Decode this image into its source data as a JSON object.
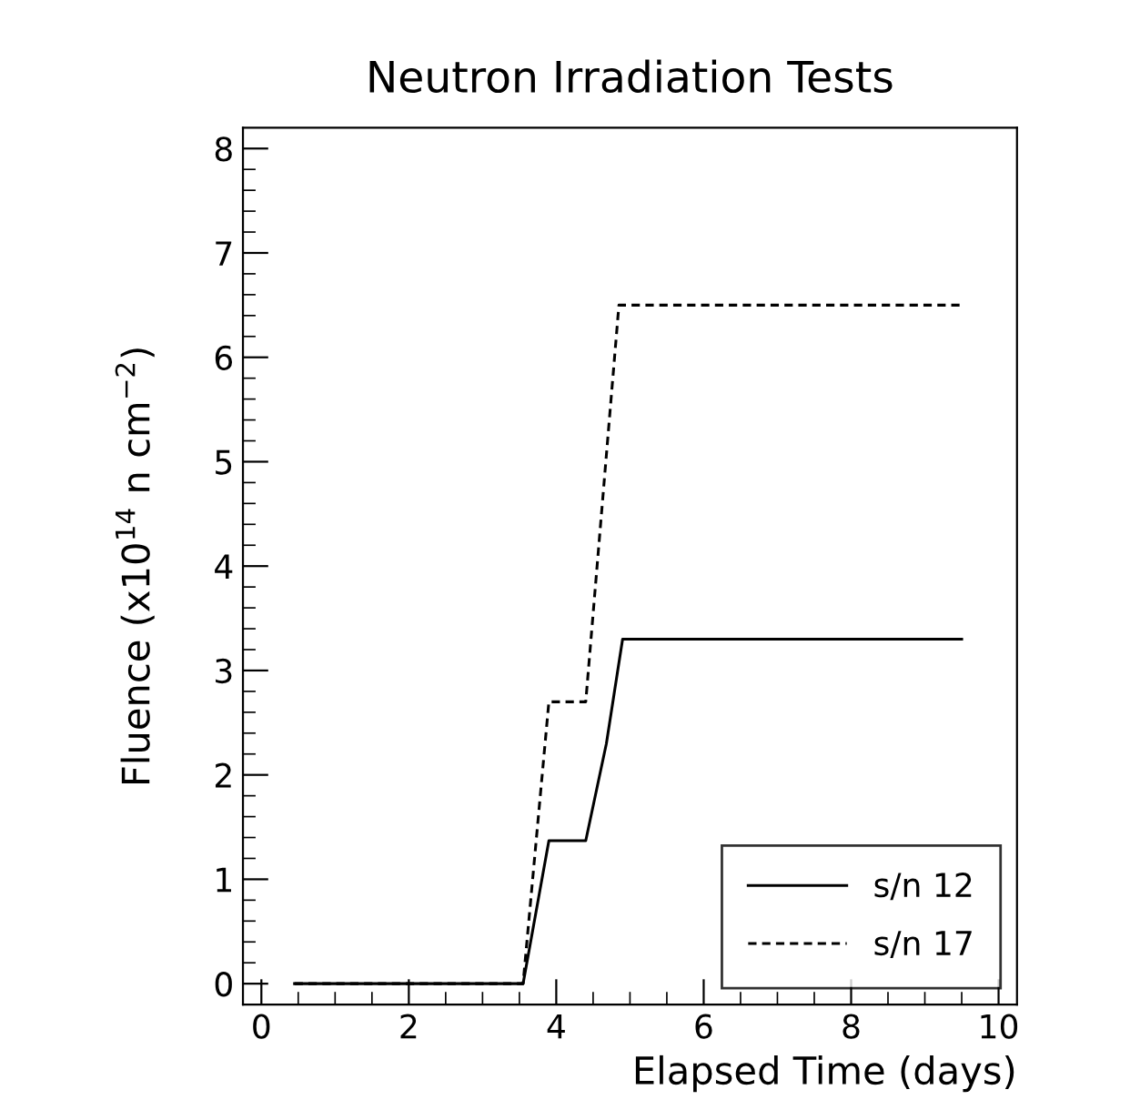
{
  "chart_data": {
    "type": "line",
    "title": "Neutron Irradiation Tests",
    "xlabel": "Elapsed Time (days)",
    "ylabel": "Fluence (x10$^{14}$ n cm$^{−2}$)",
    "series": [
      {
        "name": "s/n 12",
        "color": "#000000",
        "line_style": "solid",
        "x": [
          0.45,
          3.55,
          3.9,
          4.4,
          4.68,
          4.9,
          9.5
        ],
        "values": [
          0,
          0,
          1.37,
          1.37,
          2.3,
          3.3,
          3.3
        ]
      },
      {
        "name": "s/n 17",
        "color": "#000000",
        "line_style": "dashed",
        "x": [
          0.45,
          3.55,
          3.9,
          4.4,
          4.85,
          9.5
        ],
        "values": [
          0,
          0,
          2.7,
          2.7,
          6.5,
          6.5
        ]
      }
    ],
    "xlim": [
      -0.25,
      10.25
    ],
    "ylim": [
      -0.2,
      8.2
    ],
    "xticks": [
      0,
      {
        "value": 0.5,
        "label": null
      },
      {
        "value": 1,
        "label": null
      },
      {
        "value": 1.5,
        "label": null
      },
      2,
      {
        "value": 2.5,
        "label": null
      },
      {
        "value": 3,
        "label": null
      },
      {
        "value": 3.5,
        "label": null
      },
      4,
      {
        "value": 4.5,
        "label": null
      },
      {
        "value": 5,
        "label": null
      },
      {
        "value": 5.5,
        "label": null
      },
      6,
      {
        "value": 6.5,
        "label": null
      },
      {
        "value": 7,
        "label": null
      },
      {
        "value": 7.5,
        "label": null
      },
      8,
      {
        "value": 8.5,
        "label": null
      },
      {
        "value": 9,
        "label": null
      },
      {
        "value": 9.5,
        "label": null
      },
      10
    ],
    "yticks": [
      0,
      {
        "value": 0.2,
        "label": null
      },
      {
        "value": 0.4,
        "label": null
      },
      {
        "value": 0.6,
        "label": null
      },
      {
        "value": 0.8,
        "label": null
      },
      1,
      {
        "value": 1.2,
        "label": null
      },
      {
        "value": 1.4,
        "label": null
      },
      {
        "value": 1.6,
        "label": null
      },
      {
        "value": 1.8,
        "label": null
      },
      2,
      {
        "value": 2.2,
        "label": null
      },
      {
        "value": 2.4,
        "label": null
      },
      {
        "value": 2.6,
        "label": null
      },
      {
        "value": 2.8,
        "label": null
      },
      3,
      {
        "value": 3.2,
        "label": null
      },
      {
        "value": 3.4,
        "label": null
      },
      {
        "value": 3.6,
        "label": null
      },
      {
        "value": 3.8,
        "label": null
      },
      4,
      {
        "value": 4.2,
        "label": null
      },
      {
        "value": 4.4,
        "label": null
      },
      {
        "value": 4.6,
        "label": null
      },
      {
        "value": 4.8,
        "label": null
      },
      5,
      {
        "value": 5.2,
        "label": null
      },
      {
        "value": 5.4,
        "label": null
      },
      {
        "value": 5.6,
        "label": null
      },
      {
        "value": 5.8,
        "label": null
      },
      6,
      {
        "value": 6.2,
        "label": null
      },
      {
        "value": 6.4,
        "label": null
      },
      {
        "value": 6.6,
        "label": null
      },
      {
        "value": 6.8,
        "label": null
      },
      7,
      {
        "value": 7.2,
        "label": null
      },
      {
        "value": 7.4,
        "label": null
      },
      {
        "value": 7.6,
        "label": null
      },
      {
        "value": 7.8,
        "label": null
      },
      8
    ],
    "grid": false,
    "legend": "bottom right",
    "marker": "none"
  }
}
